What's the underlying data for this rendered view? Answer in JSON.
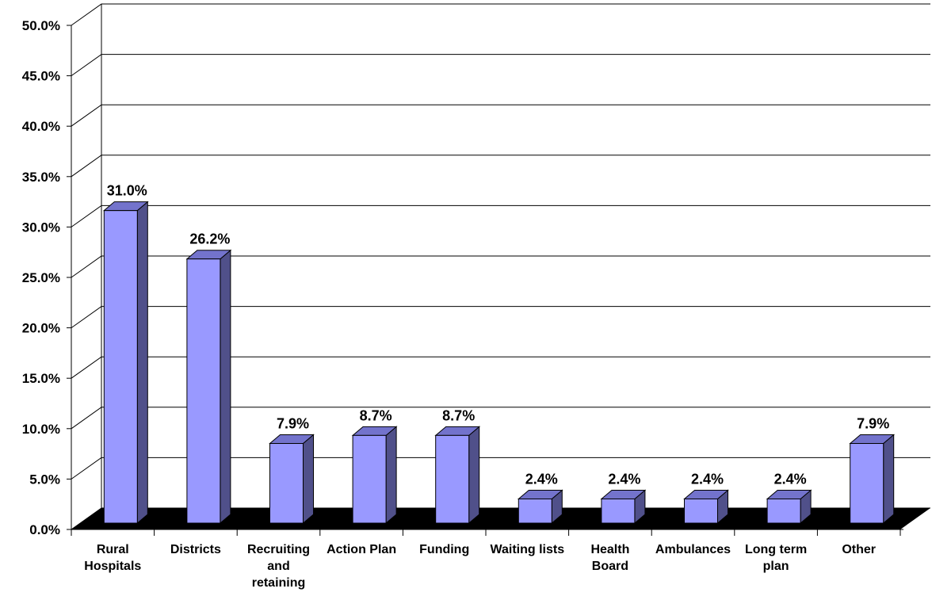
{
  "chart_data": {
    "type": "bar",
    "title": "",
    "xlabel": "",
    "ylabel": "",
    "ylim": [
      0,
      50
    ],
    "y_ticks": [
      "0.0%",
      "5.0%",
      "10.0%",
      "15.0%",
      "20.0%",
      "25.0%",
      "30.0%",
      "35.0%",
      "40.0%",
      "45.0%",
      "50.0%"
    ],
    "categories": [
      [
        "Rural",
        "Hospitals"
      ],
      [
        "Districts"
      ],
      [
        "Recruiting",
        "and",
        "retaining"
      ],
      [
        "Action Plan"
      ],
      [
        "Funding"
      ],
      [
        "Waiting lists"
      ],
      [
        "Health",
        "Board"
      ],
      [
        "Ambulances"
      ],
      [
        "Long term",
        "plan"
      ],
      [
        "Other"
      ]
    ],
    "values": [
      31.0,
      26.2,
      7.9,
      8.7,
      8.7,
      2.4,
      2.4,
      2.4,
      2.4,
      7.9
    ],
    "data_labels": [
      "31.0%",
      "26.2%",
      "7.9%",
      "8.7%",
      "8.7%",
      "2.4%",
      "2.4%",
      "2.4%",
      "2.4%",
      "7.9%"
    ],
    "grid": true,
    "legend": "none",
    "colors": {
      "bar_front": "#9999ff",
      "bar_side": "#50508a",
      "bar_top": "#7373cc",
      "floor": "#000000",
      "grid": "#000000"
    }
  }
}
